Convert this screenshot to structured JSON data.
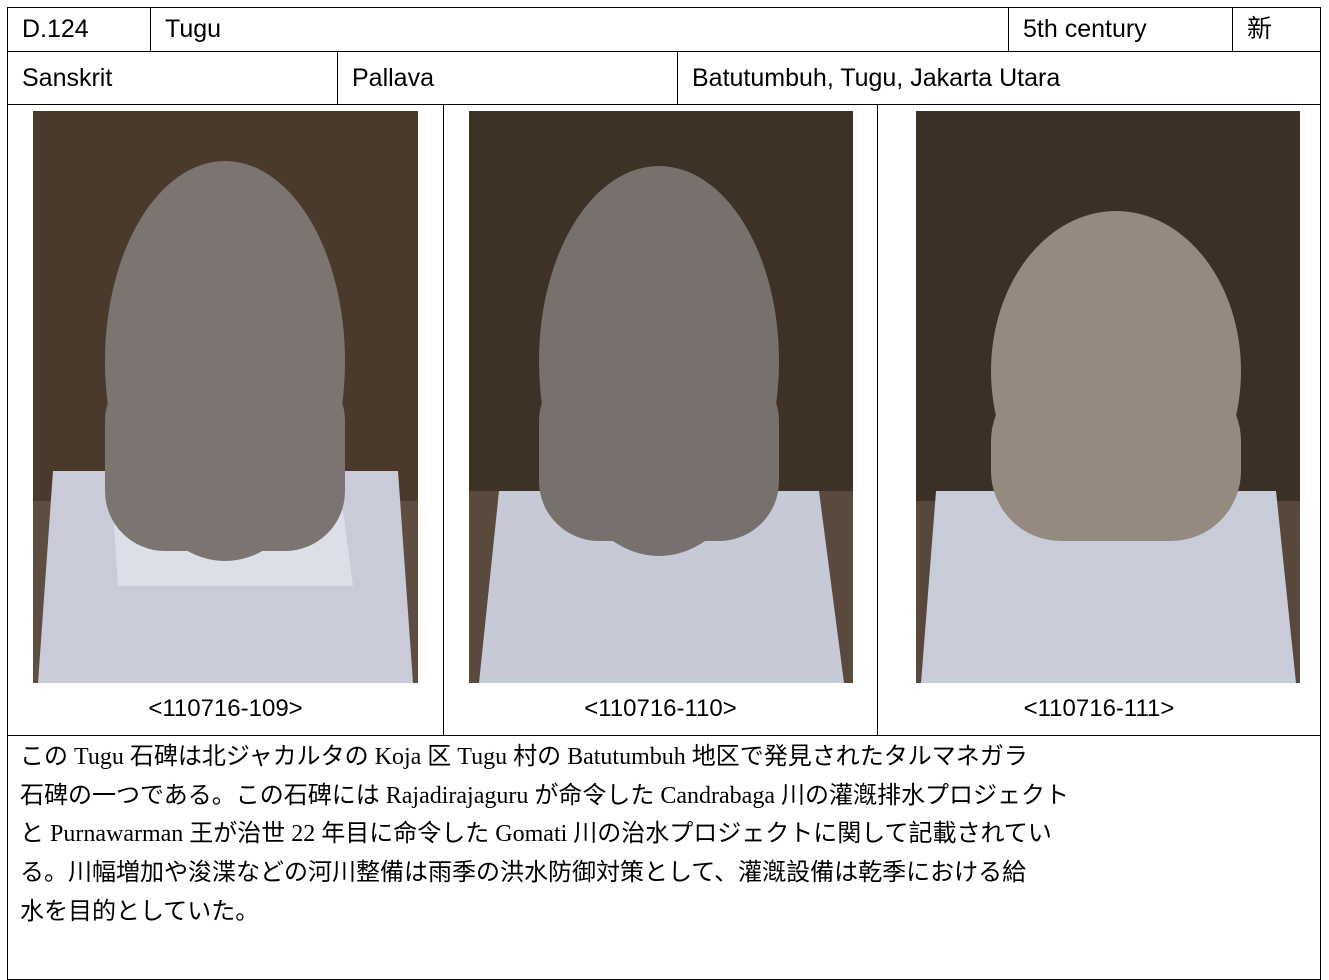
{
  "header": {
    "id": "D.124",
    "name": "Tugu",
    "date": "5th century",
    "mark": "新"
  },
  "info": {
    "language": "Sanskrit",
    "script": "Pallava",
    "location": "Batutumbuh, Tugu, Jakarta Utara"
  },
  "photos": [
    {
      "caption": "<110716-109>"
    },
    {
      "caption": "<110716-110>"
    },
    {
      "caption": "<110716-111>"
    }
  ],
  "description": {
    "lines": [
      "この Tugu 石碑は北ジャカルタの Koja 区 Tugu 村の Batutumbuh 地区で発見されたタルマネガラ",
      "石碑の一つである。この石碑には Rajadirajaguru が命令した Candrabaga 川の灌漑排水プロジェクト",
      "と Purnawarman 王が治世 22 年目に命令した Gomati 川の治水プロジェクトに関して記載されてい",
      "る。川幅増加や浚渫などの河川整備は雨季の洪水防御対策として、灌漑設備は乾季における給",
      "水を目的としていた。"
    ]
  }
}
